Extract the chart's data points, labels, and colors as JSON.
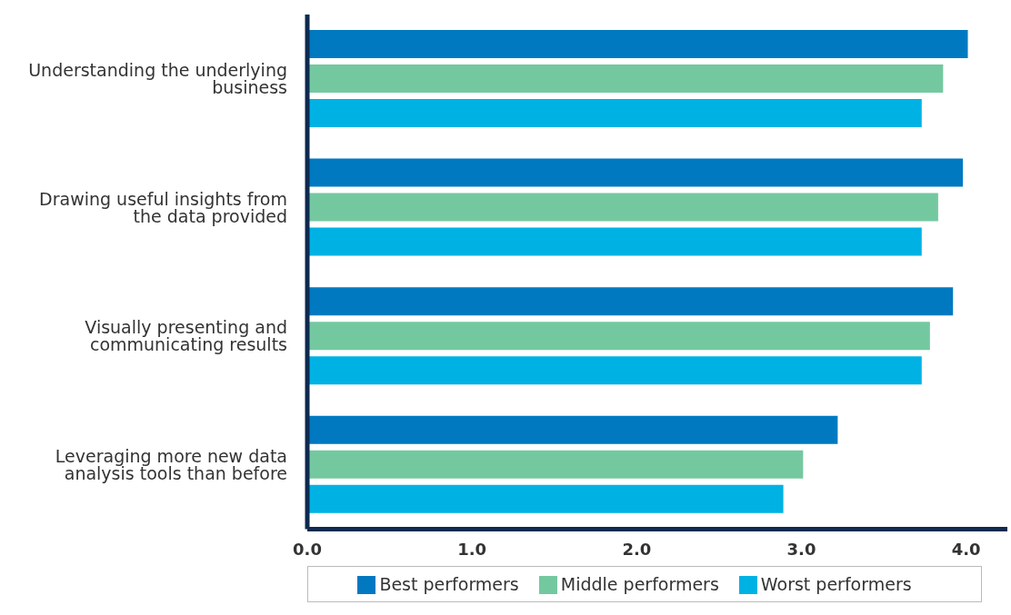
{
  "chart_data": {
    "type": "bar",
    "orientation": "horizontal",
    "categories": [
      "Understanding the underlying business",
      "Drawing useful insights from the data provided",
      "Visually presenting and communicating results",
      "Leveraging more new data analysis tools than before"
    ],
    "series": [
      {
        "name": "Best performers",
        "color": "#0079c1",
        "values": [
          4.01,
          3.98,
          3.92,
          3.22
        ]
      },
      {
        "name": "Middle performers",
        "color": "#74c8a0",
        "values": [
          3.86,
          3.83,
          3.78,
          3.01
        ]
      },
      {
        "name": "Worst performers",
        "color": "#00b2e3",
        "values": [
          3.73,
          3.73,
          3.73,
          2.89
        ]
      }
    ],
    "xlim": [
      0,
      4.25
    ],
    "xticks": [
      {
        "value": 0,
        "label": "0.0"
      },
      {
        "value": 1,
        "label": "1.0"
      },
      {
        "value": 2,
        "label": "2.0"
      },
      {
        "value": 3,
        "label": "3.0"
      },
      {
        "value": 4,
        "label": "4.0"
      }
    ],
    "grid": false,
    "legend": "bottom"
  }
}
